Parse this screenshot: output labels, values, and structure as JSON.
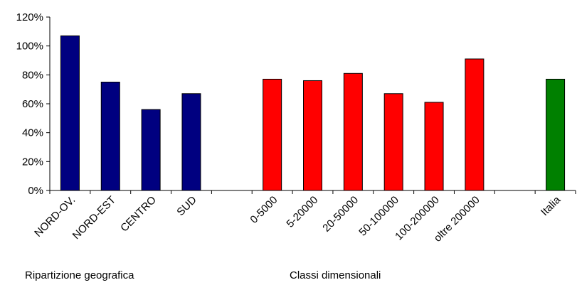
{
  "chart_data": {
    "type": "bar",
    "title": "",
    "xlabel": "",
    "ylabel": "",
    "ylim": [
      0,
      120
    ],
    "y_ticks": [
      "0%",
      "20%",
      "40%",
      "60%",
      "80%",
      "100%",
      "120%"
    ],
    "y_tick_values": [
      0,
      20,
      40,
      60,
      80,
      100,
      120
    ],
    "grid": false,
    "legend": "none",
    "categories": [
      "NORD-OV.",
      "NORD-EST",
      "CENTRO",
      "SUD",
      "",
      "0-5000",
      "5-20000",
      "20-50000",
      "50-100000",
      "100-200000",
      "oltre 200000",
      "",
      "Italia"
    ],
    "values": [
      107,
      75,
      56,
      67,
      null,
      77,
      76,
      81,
      67,
      61,
      91,
      null,
      77
    ],
    "bar_colors": [
      "#000080",
      "#000080",
      "#000080",
      "#000080",
      null,
      "#ff0000",
      "#ff0000",
      "#ff0000",
      "#ff0000",
      "#ff0000",
      "#ff0000",
      null,
      "#008000"
    ],
    "group_labels": [
      "Ripartizione geografica",
      "Classi dimensionali"
    ]
  }
}
